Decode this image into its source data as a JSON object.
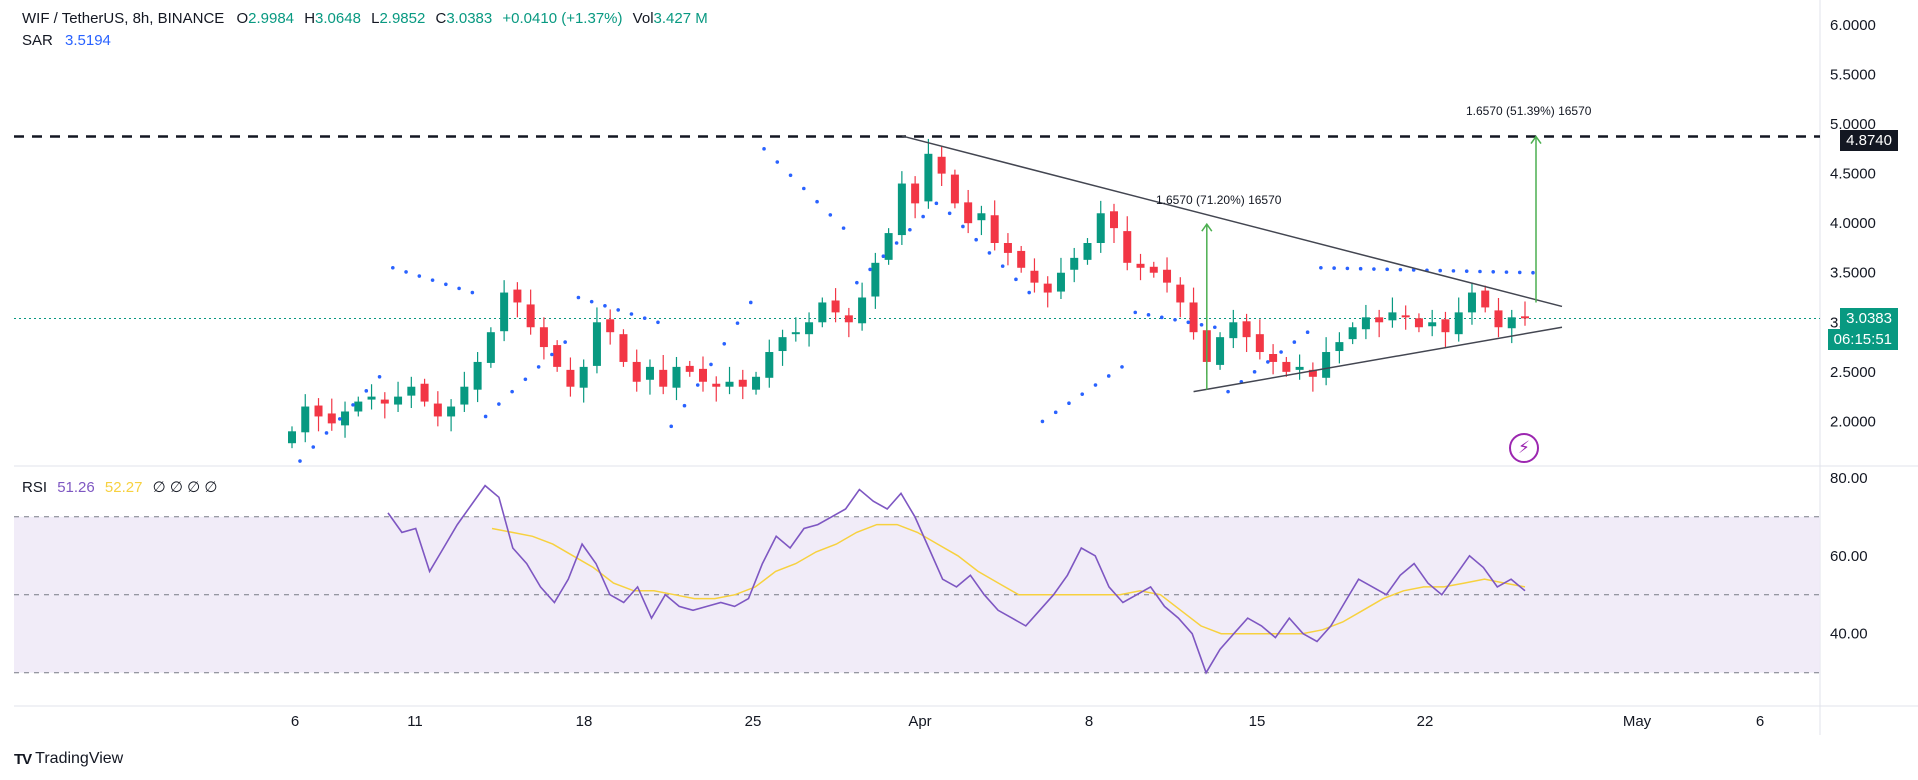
{
  "header": {
    "symbol": "WIF / TetherUS, 8h, BINANCE",
    "o_label": "O",
    "o_value": "2.9984",
    "h_label": "H",
    "h_value": "3.0648",
    "l_label": "L",
    "l_value": "2.9852",
    "c_label": "C",
    "c_value": "3.0383",
    "change": "+0.0410 (+1.37%)",
    "vol_label": "Vol",
    "vol_value": "3.427 M"
  },
  "sar": {
    "label": "SAR",
    "value": "3.5194"
  },
  "rsi": {
    "label": "RSI",
    "value": "51.26",
    "ma_value": "52.27",
    "extra": "∅ ∅ ∅ ∅"
  },
  "price_tags": {
    "resistance": "4.8740",
    "last_price": "3.0383",
    "countdown": "06:15:51"
  },
  "annotations": {
    "measure_1": "1.6570 (71.20%) 16570",
    "measure_2": "1.6570 (51.39%) 16570"
  },
  "brand": {
    "logo": "TV",
    "name": "TradingView"
  },
  "colors": {
    "up": "#089981",
    "down": "#f23645",
    "sar": "#2962ff",
    "rsi": "#7e57c2",
    "rsi_ma": "#f7d13f",
    "rsi_band": "#ede7f6",
    "measure": "#4caf50"
  },
  "chart_data": [
    {
      "type": "candlestick",
      "title": "WIF / TetherUS, 8h, BINANCE",
      "y_axis_ticks": [
        "2.0000",
        "2.5000",
        "3.0000",
        "3.5000",
        "4.0000",
        "4.5000",
        "5.0000",
        "5.5000",
        "6.0000"
      ],
      "ylim": [
        1.55,
        6.05
      ],
      "x_tick_labels": [
        "6",
        "11",
        "18",
        "25",
        "Apr",
        "8",
        "15",
        "22",
        "May",
        "6"
      ],
      "close_series": [
        1.9,
        2.15,
        2.05,
        1.98,
        2.1,
        2.2,
        2.25,
        2.18,
        2.25,
        2.35,
        2.2,
        2.05,
        2.15,
        2.35,
        2.6,
        2.9,
        3.3,
        3.2,
        2.95,
        2.75,
        2.55,
        2.35,
        2.55,
        3.0,
        2.9,
        2.6,
        2.4,
        2.55,
        2.35,
        2.55,
        2.5,
        2.4,
        2.35,
        2.4,
        2.35,
        2.45,
        2.7,
        2.85,
        2.9,
        3.0,
        3.2,
        3.1,
        3.0,
        3.25,
        3.6,
        3.9,
        4.4,
        4.2,
        4.7,
        4.5,
        4.2,
        4.0,
        4.1,
        3.8,
        3.7,
        3.55,
        3.4,
        3.3,
        3.5,
        3.65,
        3.8,
        4.1,
        3.95,
        3.6,
        3.55,
        3.5,
        3.4,
        3.2,
        2.9,
        2.6,
        2.85,
        3.0,
        2.85,
        2.7,
        2.6,
        2.5,
        2.55,
        2.45,
        2.7,
        2.8,
        2.95,
        3.05,
        3.0,
        3.1,
        3.05,
        2.95,
        3.0,
        2.9,
        3.1,
        3.3,
        3.15,
        2.95,
        3.05,
        3.04
      ],
      "sar_segments": [
        {
          "from": 1.6,
          "to": 2.45
        },
        {
          "from": 3.55,
          "to": 3.3
        },
        {
          "from": 2.05,
          "to": 2.8
        },
        {
          "from": 3.25,
          "to": 3.0
        },
        {
          "from": 1.95,
          "to": 3.2
        },
        {
          "from": 4.75,
          "to": 3.95
        },
        {
          "from": 3.4,
          "to": 4.2
        },
        {
          "from": 4.1,
          "to": 3.3
        },
        {
          "from": 2.0,
          "to": 2.55
        },
        {
          "from": 3.1,
          "to": 2.95
        },
        {
          "from": 2.3,
          "to": 2.9
        },
        {
          "from": 3.55,
          "to": 3.5
        }
      ],
      "levels": [
        {
          "name": "resistance",
          "value": 4.874
        }
      ],
      "last_price": 3.0383
    },
    {
      "type": "line",
      "title": "RSI",
      "y_axis_ticks": [
        "40.00",
        "60.00",
        "80.00"
      ],
      "ylim": [
        23,
        82
      ],
      "bands": [
        30,
        50,
        70
      ],
      "series": [
        {
          "name": "RSI",
          "values": [
            71,
            66,
            67,
            56,
            62,
            68,
            73,
            78,
            75,
            62,
            58,
            52,
            48,
            54,
            63,
            58,
            50,
            48,
            52,
            44,
            50,
            47,
            46,
            47,
            48,
            47,
            49,
            58,
            65,
            62,
            67,
            68,
            70,
            72,
            77,
            74,
            72,
            76,
            70,
            62,
            54,
            52,
            55,
            50,
            46,
            44,
            42,
            46,
            50,
            55,
            62,
            60,
            52,
            48,
            50,
            52,
            47,
            44,
            40,
            30,
            36,
            40,
            44,
            42,
            39,
            44,
            40,
            38,
            42,
            48,
            54,
            52,
            50,
            55,
            58,
            53,
            50,
            55,
            60,
            57,
            52,
            54,
            51
          ]
        },
        {
          "name": "RSI-based MA",
          "values": [
            67,
            66,
            65,
            63,
            60,
            57,
            53,
            51,
            51,
            50,
            49,
            49,
            50,
            52,
            56,
            58,
            61,
            63,
            66,
            68,
            68,
            66,
            63,
            60,
            56,
            53,
            50,
            50,
            50,
            50,
            50,
            50,
            51,
            50,
            46,
            42,
            40,
            40,
            40,
            40,
            40,
            41,
            43,
            46,
            49,
            51,
            52,
            52,
            53,
            54,
            53,
            52
          ]
        }
      ]
    }
  ]
}
